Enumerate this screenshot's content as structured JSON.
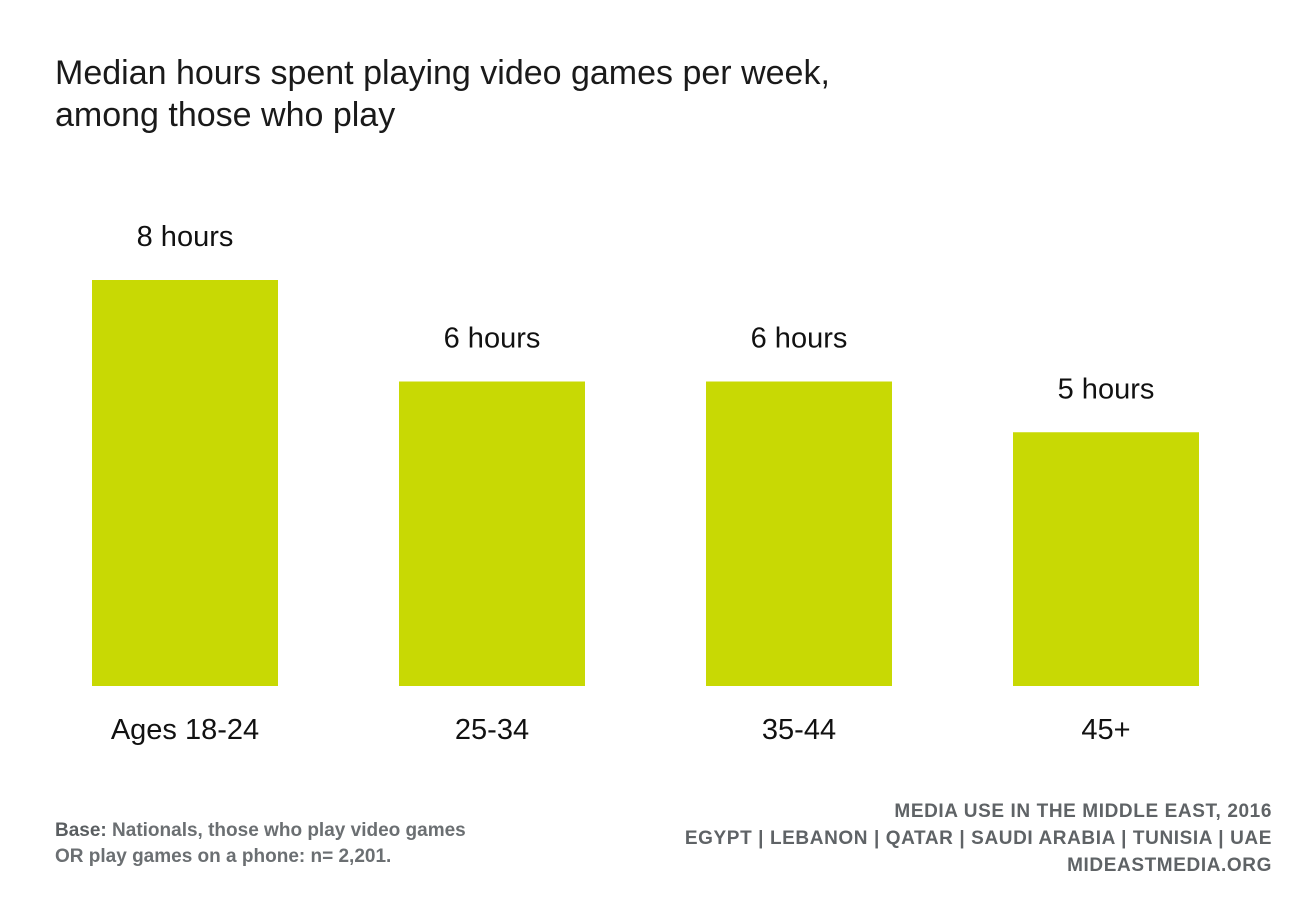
{
  "title": {
    "line1": "Median hours spent playing video games per week,",
    "line2": "among those who play"
  },
  "colors": {
    "bar": "#c8d904",
    "text": "#111111",
    "footnote": "#6b6f72"
  },
  "chart_data": {
    "type": "bar",
    "categories": [
      "Ages 18-24",
      "25-34",
      "35-44",
      "45+"
    ],
    "values": [
      8,
      6,
      6,
      5
    ],
    "data_labels": [
      "8 hours",
      "6 hours",
      "6 hours",
      "5 hours"
    ],
    "title": "Median hours spent playing video games per week, among those who play",
    "xlabel": "",
    "ylabel": "",
    "ylim": [
      0,
      8
    ],
    "grid": false,
    "legend": "none"
  },
  "footnote": {
    "label": "Base:",
    "text_line1": "Nationals, those who play video games",
    "text_line2": "OR play games on a phone: n= 2,201."
  },
  "source": {
    "line1": "MEDIA USE IN THE MIDDLE EAST, 2016",
    "line2": "EGYPT | LEBANON | QATAR | SAUDI ARABIA | TUNISIA | UAE",
    "line3": "MIDEASTMEDIA.ORG"
  }
}
